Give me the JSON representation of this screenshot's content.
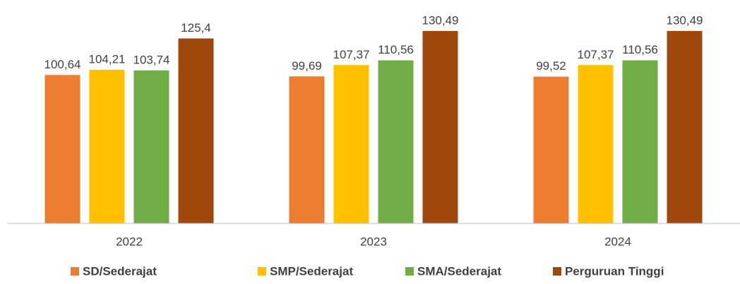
{
  "chart_data": {
    "type": "bar",
    "categories": [
      "2022",
      "2023",
      "2024"
    ],
    "series": [
      {
        "name": "SD/Sederajat",
        "color": "#ED7D31",
        "values": [
          100.64,
          99.69,
          99.52
        ],
        "value_labels": [
          "100,64",
          "99,69",
          "99,52"
        ]
      },
      {
        "name": "SMP/Sederajat",
        "color": "#FFC000",
        "values": [
          104.21,
          107.37,
          107.37
        ],
        "value_labels": [
          "104,21",
          "107,37",
          "107,37"
        ]
      },
      {
        "name": "SMA/Sederajat",
        "color": "#70AD47",
        "values": [
          103.74,
          110.56,
          110.56
        ],
        "value_labels": [
          "103,74",
          "110,56",
          "110,56"
        ]
      },
      {
        "name": "Perguruan Tinggi",
        "color": "#9E480E",
        "values": [
          125.4,
          130.49,
          130.49
        ],
        "value_labels": [
          "125,4",
          "130,49",
          "130,49"
        ]
      }
    ],
    "ylim": [
      0,
      140
    ],
    "legend": "bottom"
  }
}
